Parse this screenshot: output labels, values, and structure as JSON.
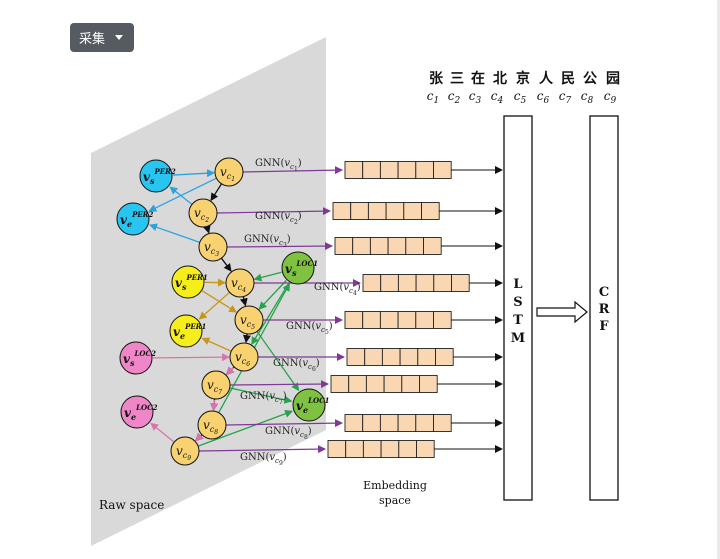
{
  "toolbar": {
    "collect_label": "采集"
  },
  "diagram": {
    "raw_space_label": "Raw space",
    "embedding_label_line1": "Embedding",
    "embedding_label_line2": "space",
    "lstm_letters": [
      "L",
      "S",
      "T",
      "M"
    ],
    "crf_letters": [
      "C",
      "R",
      "F"
    ],
    "sentence_chars": [
      "张",
      "三",
      "在",
      "北",
      "京",
      "人",
      "民",
      "公",
      "园"
    ],
    "char_indices": [
      "1",
      "2",
      "3",
      "4",
      "5",
      "6",
      "7",
      "8",
      "9"
    ],
    "char_nodes": [
      {
        "main": "v",
        "sub": "c",
        "idx": "1"
      },
      {
        "main": "v",
        "sub": "c",
        "idx": "2"
      },
      {
        "main": "v",
        "sub": "c",
        "idx": "3"
      },
      {
        "main": "v",
        "sub": "c",
        "idx": "4"
      },
      {
        "main": "v",
        "sub": "c",
        "idx": "5"
      },
      {
        "main": "v",
        "sub": "c",
        "idx": "6"
      },
      {
        "main": "v",
        "sub": "c",
        "idx": "7"
      },
      {
        "main": "v",
        "sub": "c",
        "idx": "8"
      },
      {
        "main": "v",
        "sub": "c",
        "idx": "9"
      }
    ],
    "gnn_labels": [
      "GNN(",
      ")"
    ],
    "entity_nodes": [
      {
        "main": "v",
        "sub": "s",
        "sup": "PER2",
        "color": "#29c5f1"
      },
      {
        "main": "v",
        "sub": "e",
        "sup": "PER2",
        "color": "#29c5f1"
      },
      {
        "main": "v",
        "sub": "s",
        "sup": "PER1",
        "color": "#f6ee1c"
      },
      {
        "main": "v",
        "sub": "e",
        "sup": "PER1",
        "color": "#f6ee1c"
      },
      {
        "main": "v",
        "sub": "s",
        "sup": "LOC2",
        "color": "#ef86c8"
      },
      {
        "main": "v",
        "sub": "e",
        "sup": "LOC2",
        "color": "#ef86c8"
      },
      {
        "main": "v",
        "sub": "s",
        "sup": "LOC1",
        "color": "#7fc241"
      },
      {
        "main": "v",
        "sub": "e",
        "sup": "LOC1",
        "color": "#7fc241"
      }
    ],
    "colors": {
      "char_node": "#f8d171",
      "embed_cell": "#fad7b3",
      "gnn_arrow": "#7f3a97",
      "per2_edge": "#29a3e0",
      "per1_edge": "#c9961a",
      "loc2_edge": "#d873ad",
      "loc1_edge": "#24a34a",
      "panel": "#d9d9d9"
    }
  }
}
